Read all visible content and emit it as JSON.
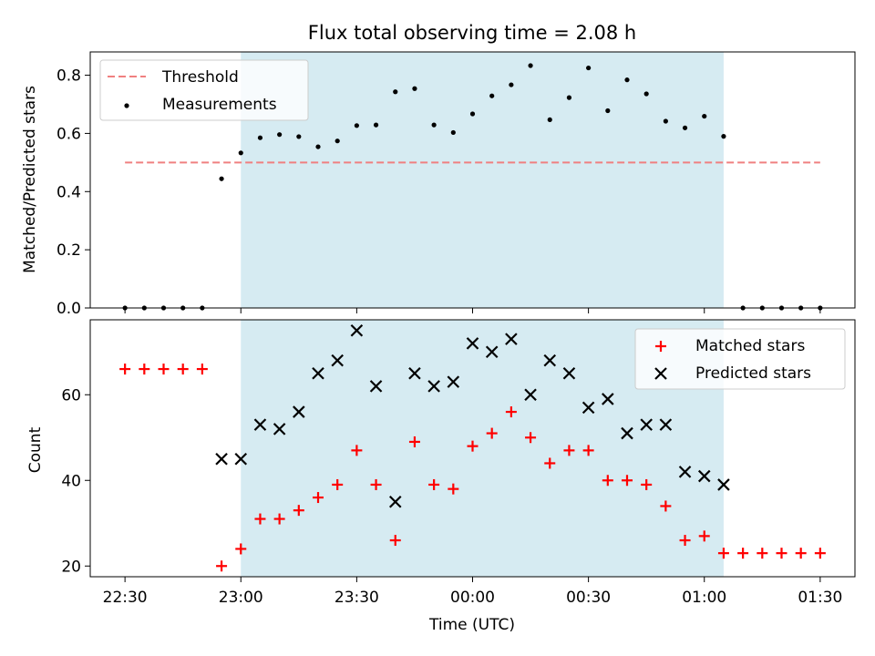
{
  "chart_data": [
    {
      "type": "scatter",
      "title": "Flux total observing time = 2.08 h",
      "xlabel": "",
      "ylabel": "Matched/Predicted stars",
      "xlim_minutes_from_22_30": [
        -9,
        189
      ],
      "ylim": [
        0,
        0.88
      ],
      "yticks": [
        0.0,
        0.2,
        0.4,
        0.6,
        0.8
      ],
      "ytick_labels": [
        "0.0",
        "0.2",
        "0.4",
        "0.6",
        "0.8"
      ],
      "shaded_interval": [
        "23:00",
        "01:05"
      ],
      "shade_color": "#add8e6",
      "legend": {
        "placement": "top-left",
        "entries": [
          "Threshold",
          "Measurements"
        ]
      },
      "threshold": {
        "name": "Threshold",
        "value": 0.5,
        "x_from": "22:30",
        "x_to": "01:30",
        "color": "#f08080"
      },
      "series": [
        {
          "name": "Measurements",
          "color": "#000000",
          "points": [
            [
              "22:30",
              0.0
            ],
            [
              "22:35",
              0.0
            ],
            [
              "22:40",
              0.0
            ],
            [
              "22:45",
              0.0
            ],
            [
              "22:50",
              0.0
            ],
            [
              "22:55",
              0.444
            ],
            [
              "23:00",
              0.533
            ],
            [
              "23:05",
              0.585
            ],
            [
              "23:10",
              0.596
            ],
            [
              "23:15",
              0.589
            ],
            [
              "23:20",
              0.554
            ],
            [
              "23:25",
              0.574
            ],
            [
              "23:30",
              0.627
            ],
            [
              "23:35",
              0.629
            ],
            [
              "23:40",
              0.743
            ],
            [
              "23:45",
              0.754
            ],
            [
              "23:50",
              0.629
            ],
            [
              "23:55",
              0.603
            ],
            [
              "00:00",
              0.667
            ],
            [
              "00:05",
              0.729
            ],
            [
              "00:10",
              0.767
            ],
            [
              "00:15",
              0.833
            ],
            [
              "00:20",
              0.647
            ],
            [
              "00:25",
              0.723
            ],
            [
              "00:30",
              0.825
            ],
            [
              "00:35",
              0.678
            ],
            [
              "00:40",
              0.784
            ],
            [
              "00:45",
              0.736
            ],
            [
              "00:50",
              0.642
            ],
            [
              "00:55",
              0.619
            ],
            [
              "01:00",
              0.659
            ],
            [
              "01:05",
              0.59
            ],
            [
              "01:10",
              0.0
            ],
            [
              "01:15",
              0.0
            ],
            [
              "01:20",
              0.0
            ],
            [
              "01:25",
              0.0
            ],
            [
              "01:30",
              0.0
            ]
          ]
        }
      ]
    },
    {
      "type": "scatter",
      "title": "",
      "xlabel": "Time (UTC)",
      "ylabel": "Count",
      "xlim_minutes_from_22_30": [
        -9,
        189
      ],
      "ylim": [
        17.5,
        77.5
      ],
      "yticks": [
        20,
        40,
        60
      ],
      "ytick_labels": [
        "20",
        "40",
        "60"
      ],
      "xticks": [
        "22:30",
        "23:00",
        "23:30",
        "00:00",
        "00:30",
        "01:00",
        "01:30"
      ],
      "shaded_interval": [
        "23:00",
        "01:05"
      ],
      "shade_color": "#add8e6",
      "legend": {
        "placement": "top-right",
        "entries": [
          "Matched stars",
          "Predicted stars"
        ]
      },
      "series": [
        {
          "name": "Matched stars",
          "marker": "plus",
          "color": "#ff0000",
          "points": [
            [
              "22:30",
              66
            ],
            [
              "22:35",
              66
            ],
            [
              "22:40",
              66
            ],
            [
              "22:45",
              66
            ],
            [
              "22:50",
              66
            ],
            [
              "22:55",
              20
            ],
            [
              "23:00",
              24
            ],
            [
              "23:05",
              31
            ],
            [
              "23:10",
              31
            ],
            [
              "23:15",
              33
            ],
            [
              "23:20",
              36
            ],
            [
              "23:25",
              39
            ],
            [
              "23:30",
              47
            ],
            [
              "23:35",
              39
            ],
            [
              "23:40",
              26
            ],
            [
              "23:45",
              49
            ],
            [
              "23:50",
              39
            ],
            [
              "23:55",
              38
            ],
            [
              "00:00",
              48
            ],
            [
              "00:05",
              51
            ],
            [
              "00:10",
              56
            ],
            [
              "00:15",
              50
            ],
            [
              "00:20",
              44
            ],
            [
              "00:25",
              47
            ],
            [
              "00:30",
              47
            ],
            [
              "00:35",
              40
            ],
            [
              "00:40",
              40
            ],
            [
              "00:45",
              39
            ],
            [
              "00:50",
              34
            ],
            [
              "00:55",
              26
            ],
            [
              "01:00",
              27
            ],
            [
              "01:05",
              23
            ],
            [
              "01:10",
              23
            ],
            [
              "01:15",
              23
            ],
            [
              "01:20",
              23
            ],
            [
              "01:25",
              23
            ],
            [
              "01:30",
              23
            ]
          ]
        },
        {
          "name": "Predicted stars",
          "marker": "x",
          "color": "#000000",
          "points": [
            [
              "22:55",
              45
            ],
            [
              "23:00",
              45
            ],
            [
              "23:05",
              53
            ],
            [
              "23:10",
              52
            ],
            [
              "23:15",
              56
            ],
            [
              "23:20",
              65
            ],
            [
              "23:25",
              68
            ],
            [
              "23:30",
              75
            ],
            [
              "23:35",
              62
            ],
            [
              "23:40",
              35
            ],
            [
              "23:45",
              65
            ],
            [
              "23:50",
              62
            ],
            [
              "23:55",
              63
            ],
            [
              "00:00",
              72
            ],
            [
              "00:05",
              70
            ],
            [
              "00:10",
              73
            ],
            [
              "00:15",
              60
            ],
            [
              "00:20",
              68
            ],
            [
              "00:25",
              65
            ],
            [
              "00:30",
              57
            ],
            [
              "00:35",
              59
            ],
            [
              "00:40",
              51
            ],
            [
              "00:45",
              53
            ],
            [
              "00:50",
              53
            ],
            [
              "00:55",
              42
            ],
            [
              "01:00",
              41
            ],
            [
              "01:05",
              39
            ]
          ]
        }
      ]
    }
  ]
}
